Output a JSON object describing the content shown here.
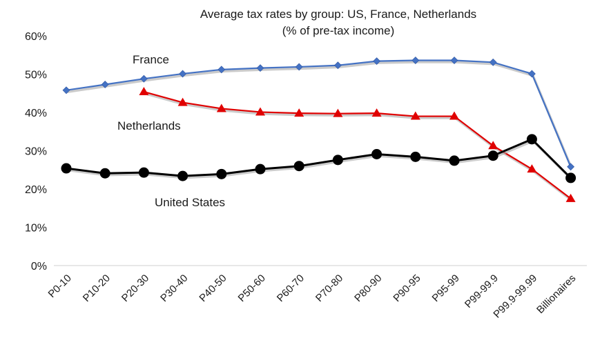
{
  "chart_data": {
    "type": "line",
    "title": "Average tax rates by group: US, France, Netherlands",
    "subtitle": "(% of pre-tax income)",
    "categories": [
      "P0-10",
      "P10-20",
      "P20-30",
      "P30-40",
      "P40-50",
      "P50-60",
      "P60-70",
      "P70-80",
      "P80-90",
      "P90-95",
      "P95-99",
      "P99-99.9",
      "P99.9-99.99",
      "Billionaires"
    ],
    "y_ticks": [
      "0%",
      "10%",
      "20%",
      "30%",
      "40%",
      "50%",
      "60%"
    ],
    "ylim": [
      0,
      60
    ],
    "grid": false,
    "legend": "none",
    "series": [
      {
        "name": "France",
        "color": "#4472c4",
        "marker": "diamond",
        "values": [
          45.8,
          47.3,
          48.8,
          50.1,
          51.2,
          51.6,
          51.9,
          52.3,
          53.4,
          53.6,
          53.6,
          53.1,
          50.1,
          25.8
        ]
      },
      {
        "name": "Netherlands",
        "color": "#e00000",
        "marker": "triangle",
        "values": [
          null,
          null,
          45.4,
          42.6,
          41.0,
          40.1,
          39.8,
          39.7,
          39.8,
          39.0,
          39.0,
          31.3,
          25.2,
          17.5
        ]
      },
      {
        "name": "United States",
        "color": "#000000",
        "marker": "circle",
        "values": [
          25.4,
          24.1,
          24.3,
          23.4,
          23.9,
          25.2,
          26.0,
          27.6,
          29.1,
          28.4,
          27.4,
          28.7,
          33.0,
          22.9
        ]
      }
    ]
  }
}
